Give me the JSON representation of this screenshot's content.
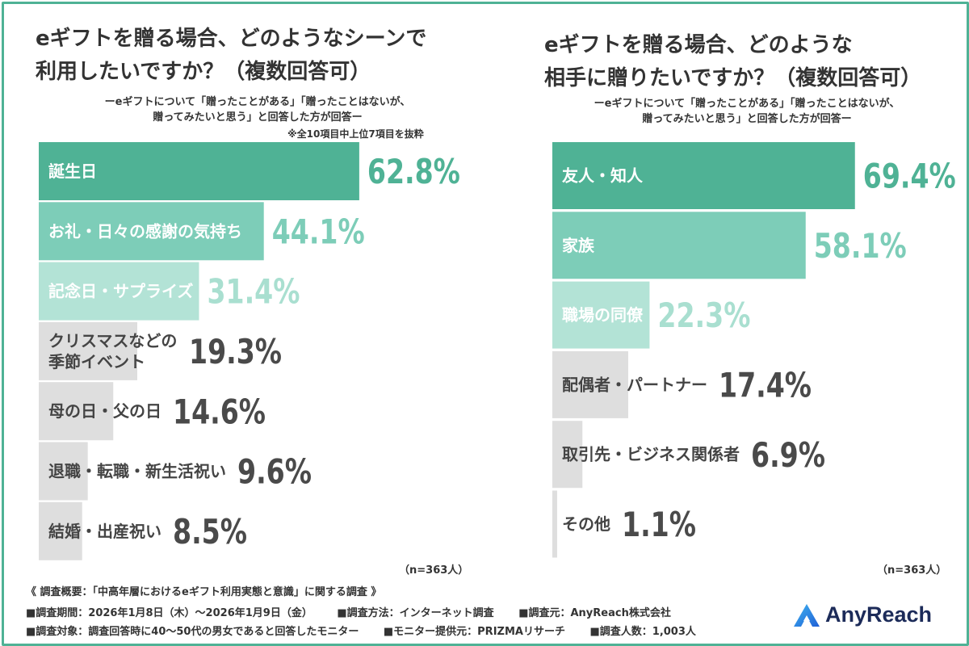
{
  "colors": {
    "frame": "#4fb295",
    "top": "#4fb295",
    "second": "#7dcdb8",
    "third": "#b3e3d6",
    "rest": "#dedede",
    "top_value": "#4fb295",
    "second_value": "#7dcdb8",
    "third_value": "#a9dfd0",
    "rest_value": "#4a4a4a"
  },
  "left": {
    "title": "eギフトを贈る場合、どのようなシーンで\n利用したいですか？（複数回答可）",
    "subtitle": "ーeギフトについて「贈ったことがある」「贈ったことはないが、\n贈ってみたいと思う」と回答した方が回答ー",
    "note": "※全10項目中上位7項目を抜粋",
    "n_label": "（n=363人）"
  },
  "right": {
    "title": "eギフトを贈る場合、どのような\n相手に贈りたいですか？（複数回答可）",
    "subtitle": "ーeギフトについて「贈ったことがある」「贈ったことはないが、\n贈ってみたいと思う」と回答した方が回答ー",
    "n_label": "（n=363人）"
  },
  "chart_data": [
    {
      "type": "bar",
      "orientation": "horizontal",
      "title": "eギフトを贈る場合、どのようなシーンで利用したいですか？（複数回答可）",
      "unit": "%",
      "categories": [
        "誕生日",
        "お礼・日々の感謝の気持ち",
        "記念日・サプライズ",
        "クリスマスなどの季節イベント",
        "母の日・父の日",
        "退職・転職・新生活祝い",
        "結婚・出産祝い"
      ],
      "category_lines": [
        [
          "誕生日"
        ],
        [
          "お礼・日々の感謝の気持ち"
        ],
        [
          "記念日・サプライズ"
        ],
        [
          "クリスマスなどの",
          "季節イベント"
        ],
        [
          "母の日・父の日"
        ],
        [
          "退職・転職・新生活祝い"
        ],
        [
          "結婚・出産祝い"
        ]
      ],
      "values": [
        62.8,
        44.1,
        31.4,
        19.3,
        14.6,
        9.6,
        8.5
      ],
      "value_labels": [
        "62.8%",
        "44.1%",
        "31.4%",
        "19.3%",
        "14.6%",
        "9.6%",
        "8.5%"
      ],
      "xlim": [
        0,
        100
      ]
    },
    {
      "type": "bar",
      "orientation": "horizontal",
      "title": "eギフトを贈る場合、どのような相手に贈りたいですか？（複数回答可）",
      "unit": "%",
      "categories": [
        "友人・知人",
        "家族",
        "職場の同僚",
        "配偶者・パートナー",
        "取引先・ビジネス関係者",
        "その他"
      ],
      "category_lines": [
        [
          "友人・知人"
        ],
        [
          "家族"
        ],
        [
          "職場の同僚"
        ],
        [
          "配偶者・パートナー"
        ],
        [
          "取引先・ビジネス関係者"
        ],
        [
          "その他"
        ]
      ],
      "values": [
        69.4,
        58.1,
        22.3,
        17.4,
        6.9,
        1.1
      ],
      "value_labels": [
        "69.4%",
        "58.1%",
        "22.3%",
        "17.4%",
        "6.9%",
        "1.1%"
      ],
      "xlim": [
        0,
        100
      ]
    }
  ],
  "footer": {
    "heading": "《 調査概要：「中高年層におけるeギフト利用実態と意識」に関する調査 》",
    "row1": [
      "■調査期間：2026年1月8日（木）～2026年1月9日（金）",
      "■調査方法：インターネット調査",
      "■調査元：AnyReach株式会社"
    ],
    "row2": [
      "■調査対象：調査回答時に40～50代の男女であると回答したモニター",
      "■モニター提供元：PRIZMAリサーチ",
      "■調査人数：1,003人"
    ]
  },
  "logo": {
    "text": "AnyReach",
    "icon": "anyreach-logo-icon"
  }
}
